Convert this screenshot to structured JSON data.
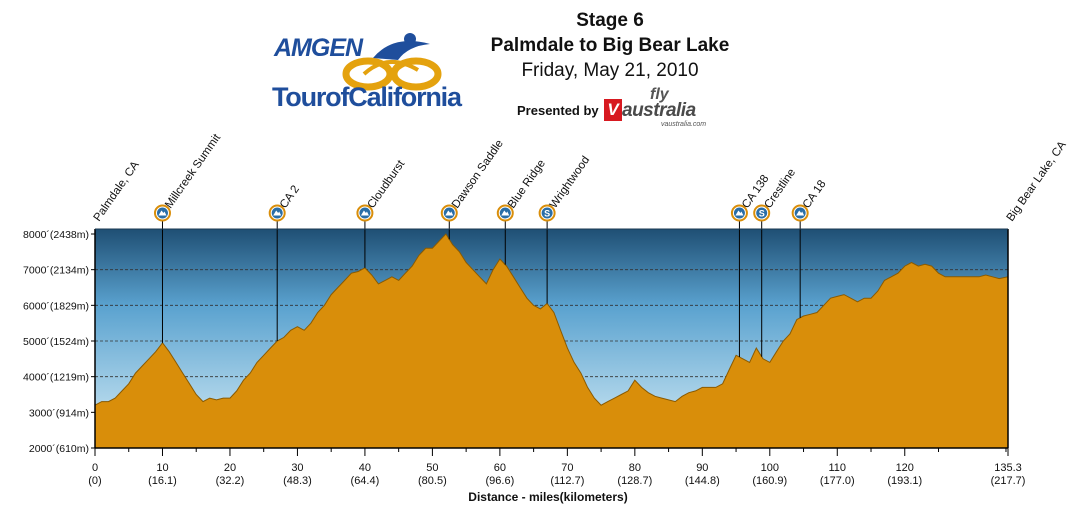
{
  "header": {
    "stage": "Stage 6",
    "route": "Palmdale to Big Bear Lake",
    "date": "Friday, May 21, 2010",
    "presented_by": "Presented by",
    "logo_top": "AMGEN",
    "logo_bottom": "TourofCalifornia",
    "sponsor_fly": "fly",
    "sponsor_v": "V",
    "sponsor_name": "australia",
    "sponsor_url": "vaustralia.com"
  },
  "colors": {
    "profile_fill": "#d98e0a",
    "profile_stroke": "#8a5a00",
    "sky_top": "#1f4f74",
    "sky_bottom": "#d6edf7",
    "marker_blue": "#2a6ea7"
  },
  "chart_data": {
    "type": "area",
    "title": "Stage 6",
    "xlabel": "Distance - miles(kilometers)",
    "ylabel": "",
    "xlim": [
      0,
      135.3
    ],
    "ylim": [
      2000,
      8000
    ],
    "grid": true,
    "x_ticks": [
      {
        "value": 0,
        "label": "0",
        "sublabel": "(0)"
      },
      {
        "value": 10,
        "label": "10",
        "sublabel": "(16.1)"
      },
      {
        "value": 20,
        "label": "20",
        "sublabel": "(32.2)"
      },
      {
        "value": 30,
        "label": "30",
        "sublabel": "(48.3)"
      },
      {
        "value": 40,
        "label": "40",
        "sublabel": "(64.4)"
      },
      {
        "value": 50,
        "label": "50",
        "sublabel": "(80.5)"
      },
      {
        "value": 60,
        "label": "60",
        "sublabel": "(96.6)"
      },
      {
        "value": 70,
        "label": "70",
        "sublabel": "(112.7)"
      },
      {
        "value": 80,
        "label": "80",
        "sublabel": "(128.7)"
      },
      {
        "value": 90,
        "label": "90",
        "sublabel": "(144.8)"
      },
      {
        "value": 100,
        "label": "100",
        "sublabel": "(160.9)"
      },
      {
        "value": 110,
        "label": "110",
        "sublabel": "(177.0)"
      },
      {
        "value": 120,
        "label": "120",
        "sublabel": "(193.1)"
      },
      {
        "value": 135.3,
        "label": "135.3",
        "sublabel": "(217.7)"
      }
    ],
    "y_ticks": [
      {
        "value": 8000,
        "label": "8000´(2438m)"
      },
      {
        "value": 7000,
        "label": "7000´(2134m)"
      },
      {
        "value": 6000,
        "label": "6000´(1829m)"
      },
      {
        "value": 5000,
        "label": "5000´(1524m)"
      },
      {
        "value": 4000,
        "label": "4000´(1219m)"
      },
      {
        "value": 3000,
        "label": "3000´(914m)"
      },
      {
        "value": 2000,
        "label": "2000´(610m)"
      }
    ],
    "endpoints": [
      {
        "x": 0,
        "label": "Palmdale, CA"
      },
      {
        "x": 135.3,
        "label": "Big Bear Lake, CA"
      }
    ],
    "markers": [
      {
        "x": 10,
        "label": "Millcreek Summit",
        "kind": "climb"
      },
      {
        "x": 27,
        "label": "CA 2",
        "kind": "climb"
      },
      {
        "x": 40,
        "label": "Cloudburst",
        "kind": "climb"
      },
      {
        "x": 52.5,
        "label": "Dawson Saddle",
        "kind": "climb"
      },
      {
        "x": 60.8,
        "label": "Blue Ridge",
        "kind": "climb"
      },
      {
        "x": 67,
        "label": "Wrightwood",
        "kind": "sprint"
      },
      {
        "x": 95.5,
        "label": "CA 138",
        "kind": "climb"
      },
      {
        "x": 98.8,
        "label": "Crestline",
        "kind": "sprint"
      },
      {
        "x": 104.5,
        "label": "CA 18",
        "kind": "climb"
      }
    ],
    "series": [
      {
        "values_x": [
          0,
          1,
          2,
          3,
          4,
          5,
          6,
          7,
          8,
          9,
          10,
          11,
          12,
          13,
          14,
          15,
          16,
          17,
          18,
          19,
          20,
          21,
          22,
          23,
          24,
          25,
          26,
          27,
          28,
          29,
          30,
          31,
          32,
          33,
          34,
          35,
          36,
          37,
          38,
          39,
          40,
          41,
          42,
          43,
          44,
          45,
          46,
          47,
          48,
          49,
          50,
          51,
          52,
          53,
          54,
          55,
          56,
          57,
          58,
          59,
          60,
          61,
          62,
          63,
          64,
          65,
          66,
          67,
          68,
          69,
          70,
          71,
          72,
          73,
          74,
          75,
          76,
          77,
          78,
          79,
          80,
          81,
          82,
          83,
          84,
          85,
          86,
          87,
          88,
          89,
          90,
          91,
          92,
          93,
          94,
          95,
          96,
          97,
          98,
          99,
          100,
          101,
          102,
          103,
          104,
          105,
          106,
          107,
          108,
          109,
          110,
          111,
          112,
          113,
          114,
          115,
          116,
          117,
          118,
          119,
          120,
          121,
          122,
          123,
          124,
          125,
          126,
          127,
          128,
          129,
          130,
          131,
          132,
          133,
          134,
          135.3
        ],
        "values_y": [
          3200,
          3300,
          3300,
          3400,
          3600,
          3800,
          4100,
          4300,
          4500,
          4700,
          4950,
          4700,
          4400,
          4100,
          3800,
          3500,
          3300,
          3400,
          3350,
          3400,
          3400,
          3600,
          3900,
          4100,
          4400,
          4600,
          4800,
          5000,
          5100,
          5300,
          5400,
          5300,
          5500,
          5800,
          6000,
          6300,
          6500,
          6700,
          6900,
          6950,
          7050,
          6850,
          6600,
          6700,
          6800,
          6700,
          6900,
          7100,
          7400,
          7600,
          7600,
          7800,
          8000,
          7700,
          7500,
          7200,
          7000,
          6800,
          6600,
          7000,
          7300,
          7100,
          6800,
          6500,
          6200,
          6000,
          5900,
          6050,
          5800,
          5300,
          4800,
          4400,
          4100,
          3700,
          3400,
          3200,
          3300,
          3400,
          3500,
          3600,
          3900,
          3700,
          3550,
          3450,
          3400,
          3350,
          3300,
          3450,
          3550,
          3600,
          3700,
          3700,
          3700,
          3800,
          4200,
          4600,
          4500,
          4400,
          4800,
          4500,
          4400,
          4700,
          5000,
          5200,
          5600,
          5700,
          5750,
          5800,
          6000,
          6200,
          6250,
          6300,
          6200,
          6100,
          6200,
          6200,
          6400,
          6700,
          6800,
          6900,
          7100,
          7200,
          7100,
          7150,
          7100,
          6900,
          6800,
          6800,
          6800,
          6800,
          6800,
          6800,
          6850,
          6800,
          6750,
          6800
        ]
      }
    ]
  }
}
